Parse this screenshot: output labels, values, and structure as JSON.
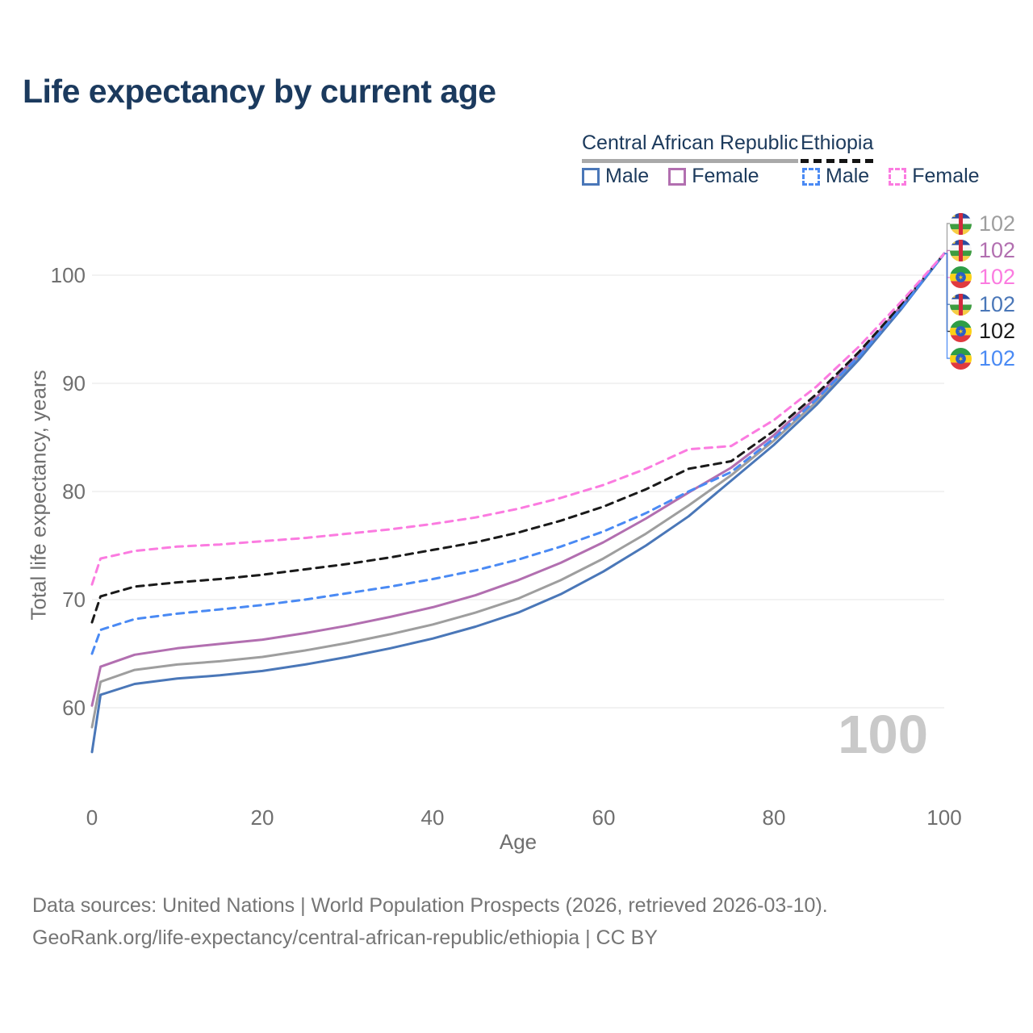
{
  "title": "Life expectancy by current age",
  "legend": {
    "groups": [
      {
        "label": "Central African Republic",
        "line_style": "solid",
        "line_color": "#a9a9a9",
        "items": [
          {
            "label": "Male",
            "color": "#4a77b8",
            "style": "solid"
          },
          {
            "label": "Female",
            "color": "#b26fb0",
            "style": "solid"
          }
        ]
      },
      {
        "label": "Ethiopia",
        "line_style": "dashed",
        "line_color": "#141414",
        "items": [
          {
            "label": "Male",
            "color": "#4a8af4",
            "style": "dashed"
          },
          {
            "label": "Female",
            "color": "#fb7be0",
            "style": "dashed"
          }
        ]
      }
    ]
  },
  "watermark_age_counter": "100",
  "footer": {
    "line1": "Data sources: United Nations | World Population Prospects (2026, retrieved 2026-03-10).",
    "line2": "GeoRank.org/life-expectancy/central-african-republic/ethiopia | CC BY"
  },
  "flags": {
    "car": {
      "blue": "#2b4da0",
      "white": "#f7f7f7",
      "green": "#3d9c40",
      "yellow": "#f6ce44",
      "red": "#d3293d"
    },
    "eth": {
      "green": "#2e9e47",
      "yellow": "#fcd116",
      "red": "#e03a3f",
      "blue": "#2b5fc7"
    }
  },
  "chart_data": {
    "type": "line",
    "title": "Life expectancy by current age",
    "xlabel": "Age",
    "ylabel": "Total life expectancy, years",
    "x_ticks": [
      0,
      20,
      40,
      60,
      80,
      100
    ],
    "y_ticks": [
      60,
      70,
      80,
      90,
      100
    ],
    "xlim": [
      0,
      100
    ],
    "ylim": [
      55,
      103
    ],
    "grid": "horizontal-only",
    "legend_position": "top-right",
    "x": [
      0,
      1,
      5,
      10,
      15,
      20,
      25,
      30,
      35,
      40,
      45,
      50,
      55,
      60,
      65,
      70,
      75,
      80,
      85,
      90,
      95,
      100
    ],
    "series": [
      {
        "id": "car_both",
        "name": "Central African Republic — Both sexes",
        "style": "solid",
        "color": "#9e9e9e",
        "values": [
          58.2,
          62.4,
          63.5,
          64.0,
          64.3,
          64.7,
          65.3,
          66.0,
          66.8,
          67.7,
          68.8,
          70.1,
          71.8,
          73.8,
          76.1,
          78.7,
          81.5,
          84.7,
          88.3,
          92.4,
          97.0,
          102
        ]
      },
      {
        "id": "car_female",
        "name": "Central African Republic — Female",
        "style": "solid",
        "color": "#b26fb0",
        "values": [
          60.2,
          63.8,
          64.9,
          65.5,
          65.9,
          66.3,
          66.9,
          67.6,
          68.4,
          69.3,
          70.4,
          71.8,
          73.4,
          75.3,
          77.5,
          79.9,
          82.2,
          85.2,
          88.7,
          92.7,
          97.2,
          102
        ]
      },
      {
        "id": "car_male",
        "name": "Central African Republic — Male",
        "style": "solid",
        "color": "#4a77b8",
        "values": [
          55.9,
          61.2,
          62.2,
          62.7,
          63.0,
          63.4,
          64.0,
          64.7,
          65.5,
          66.4,
          67.5,
          68.8,
          70.5,
          72.6,
          75.0,
          77.7,
          81.0,
          84.3,
          88.0,
          92.2,
          96.9,
          102
        ]
      },
      {
        "id": "eth_both",
        "name": "Ethiopia — Both sexes",
        "style": "dashed",
        "color": "#1a1a1a",
        "values": [
          67.9,
          70.3,
          71.2,
          71.6,
          71.9,
          72.3,
          72.8,
          73.3,
          73.9,
          74.6,
          75.3,
          76.2,
          77.3,
          78.6,
          80.2,
          82.1,
          82.8,
          85.6,
          89.0,
          92.9,
          97.3,
          102
        ]
      },
      {
        "id": "eth_male",
        "name": "Ethiopia — Male",
        "style": "dashed",
        "color": "#4a8af4",
        "values": [
          65.0,
          67.2,
          68.2,
          68.7,
          69.1,
          69.5,
          70.0,
          70.6,
          71.2,
          71.9,
          72.7,
          73.7,
          74.9,
          76.3,
          78.0,
          80.0,
          81.8,
          84.9,
          88.5,
          92.5,
          97.0,
          102
        ]
      },
      {
        "id": "eth_female",
        "name": "Ethiopia — Female",
        "style": "dashed",
        "color": "#fb7be0",
        "values": [
          71.4,
          73.8,
          74.5,
          74.9,
          75.1,
          75.4,
          75.7,
          76.1,
          76.5,
          77.0,
          77.6,
          78.4,
          79.4,
          80.6,
          82.1,
          83.9,
          84.2,
          86.6,
          89.7,
          93.4,
          97.6,
          102
        ]
      }
    ],
    "end_labels": [
      {
        "series": "car_both",
        "flag": "car",
        "color": "#9e9e9e",
        "text": "102"
      },
      {
        "series": "car_female",
        "flag": "car",
        "color": "#b26fb0",
        "text": "102"
      },
      {
        "series": "eth_female",
        "flag": "eth",
        "color": "#fb7be0",
        "text": "102"
      },
      {
        "series": "car_male",
        "flag": "car",
        "color": "#4a77b8",
        "text": "102"
      },
      {
        "series": "eth_both",
        "flag": "eth",
        "color": "#1a1a1a",
        "text": "102"
      },
      {
        "series": "eth_male",
        "flag": "eth",
        "color": "#4a8af4",
        "text": "102"
      }
    ]
  }
}
